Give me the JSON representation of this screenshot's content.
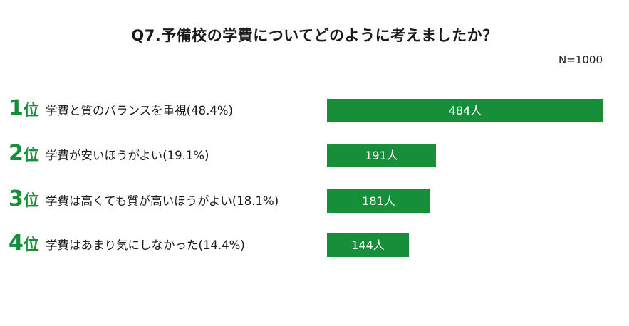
{
  "chart_data": {
    "type": "bar",
    "orientation": "horizontal",
    "title": "Q7.予備校の学費についてどのように考えましたか？",
    "note": "N=1000",
    "categories": [
      "学費と質のバランスを重視(48.4%)",
      "学費が安いほうがよい(19.1%)",
      "学費は高くても質が高いほうがよい(18.1%)",
      "学費はあまり気にしなかった(14.4%)"
    ],
    "ranks": [
      "1",
      "2",
      "3",
      "4"
    ],
    "rank_suffix": "位",
    "values": [
      484,
      191,
      181,
      144
    ],
    "value_suffix": "人",
    "xlim": [
      0,
      484
    ],
    "bar_color": "#178e3a",
    "grid": false,
    "legend": "none"
  }
}
